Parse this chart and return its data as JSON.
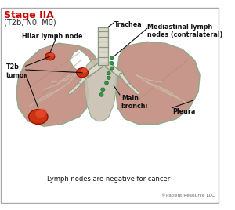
{
  "title": "Stage IIA",
  "subtitle": "(T2b, N0, M0)",
  "title_color": "#cc0000",
  "subtitle_color": "#222222",
  "bg_color": "#ffffff",
  "border_color": "#aaaaaa",
  "lung_fill": "#c8978c",
  "lung_edge": "#8aaa88",
  "lung_inner": "#d4a09a",
  "trachea_fill": "#ddd8cc",
  "trachea_edge": "#8a9a80",
  "tumor_fill": "#cc3311",
  "tumor_edge": "#991100",
  "tumor_highlight": "#ee5533",
  "node_fill": "#339944",
  "node_edge": "#226633",
  "mediastinum_fill": "#c8bfb0",
  "annotation_color": "#111111",
  "bottom_text": "Lymph nodes are negative for cancer",
  "copyright": "©Patient Resource LLC",
  "labels": {
    "trachea": "Trachea",
    "hilar": "Hilar lymph node",
    "mediastinal": "Mediastinal lymph\nnodes (contralateral)",
    "tumor": "T2b\ntumor",
    "main_bronchi": "Main\nbronchi",
    "pleura": "Pleura"
  }
}
